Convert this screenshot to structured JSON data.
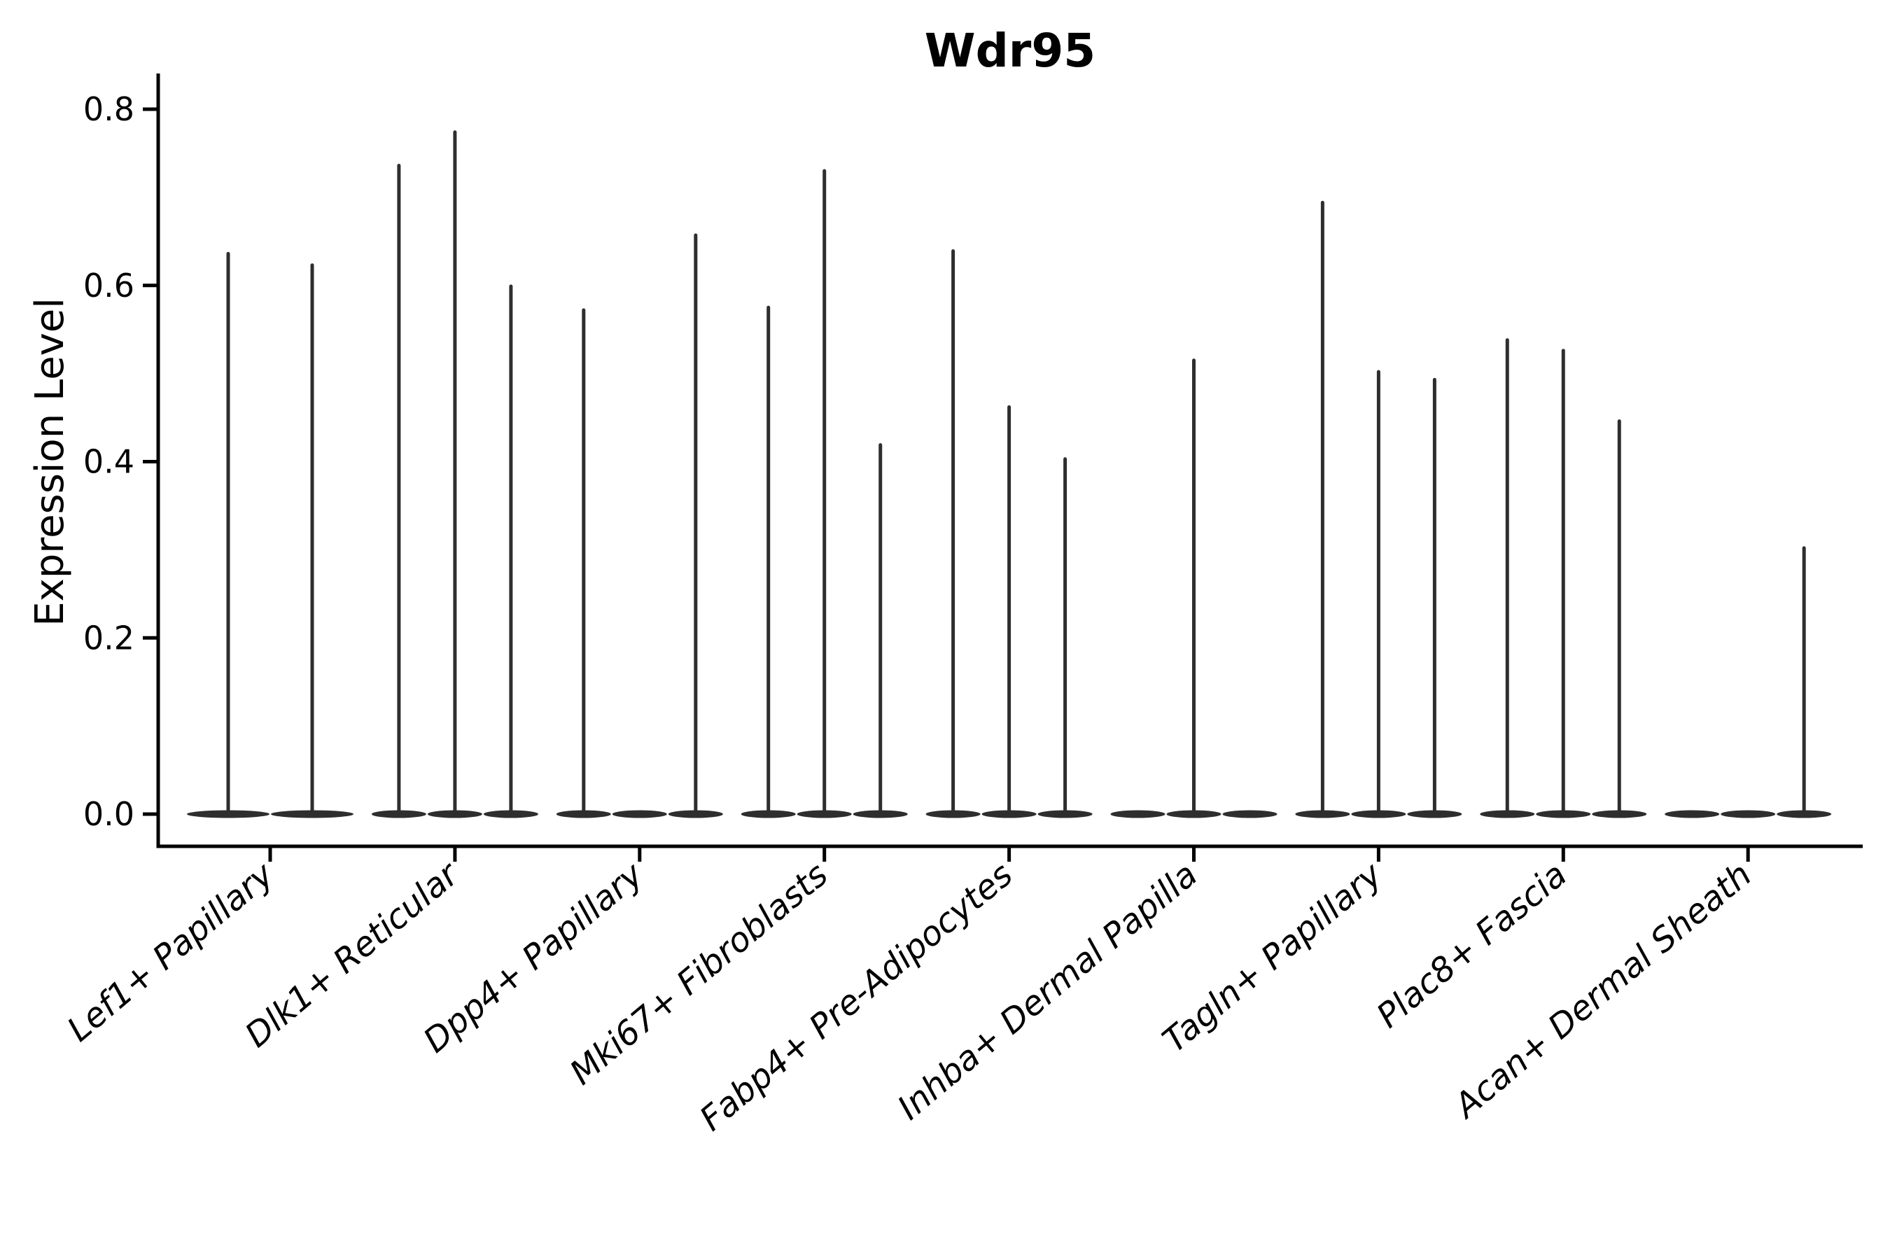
{
  "title": "Wdr95",
  "chart_data": {
    "type": "violin",
    "title": "Wdr95",
    "xlabel": "",
    "ylabel": "Expression Level",
    "ylim": [
      0.0,
      0.8
    ],
    "ytick_labels": [
      "0.0",
      "0.2",
      "0.4",
      "0.6",
      "0.8"
    ],
    "ytick_values": [
      0.0,
      0.2,
      0.4,
      0.6,
      0.8
    ],
    "grid": false,
    "legend": "none",
    "categories": [
      "Lef1+ Papillary",
      "Dlk1+ Reticular",
      "Dpp4+ Papillary",
      "Mki67+ Fibroblasts",
      "Fabp4+ Pre-Adipocytes",
      "Inhba+ Dermal Papilla",
      "Tagln+ Papillary",
      "Plac8+ Fascia",
      "Acan+ Dermal Sheath"
    ],
    "groups": [
      {
        "category": "Lef1+ Papillary",
        "violin_peaks": [
          0.636,
          0.623
        ]
      },
      {
        "category": "Dlk1+ Reticular",
        "violin_peaks": [
          0.736,
          0.774,
          0.599
        ]
      },
      {
        "category": "Dpp4+ Papillary",
        "violin_peaks": [
          0.572,
          0,
          0.657
        ]
      },
      {
        "category": "Mki67+ Fibroblasts",
        "violin_peaks": [
          0.575,
          0.73,
          0.419
        ]
      },
      {
        "category": "Fabp4+ Pre-Adipocytes",
        "violin_peaks": [
          0.639,
          0.462,
          0.403
        ]
      },
      {
        "category": "Inhba+ Dermal Papilla",
        "violin_peaks": [
          0,
          0.515,
          0
        ]
      },
      {
        "category": "Tagln+ Papillary",
        "violin_peaks": [
          0.694,
          0.502,
          0.493
        ]
      },
      {
        "category": "Plac8+ Fascia",
        "violin_peaks": [
          0.538,
          0.526,
          0.446
        ]
      },
      {
        "category": "Acan+ Dermal Sheath",
        "violin_peaks": [
          0,
          0,
          0.302
        ]
      }
    ],
    "colors": {
      "violin": "#2e2e2e",
      "axis": "#000000",
      "text": "#000000",
      "background": "#ffffff"
    }
  }
}
